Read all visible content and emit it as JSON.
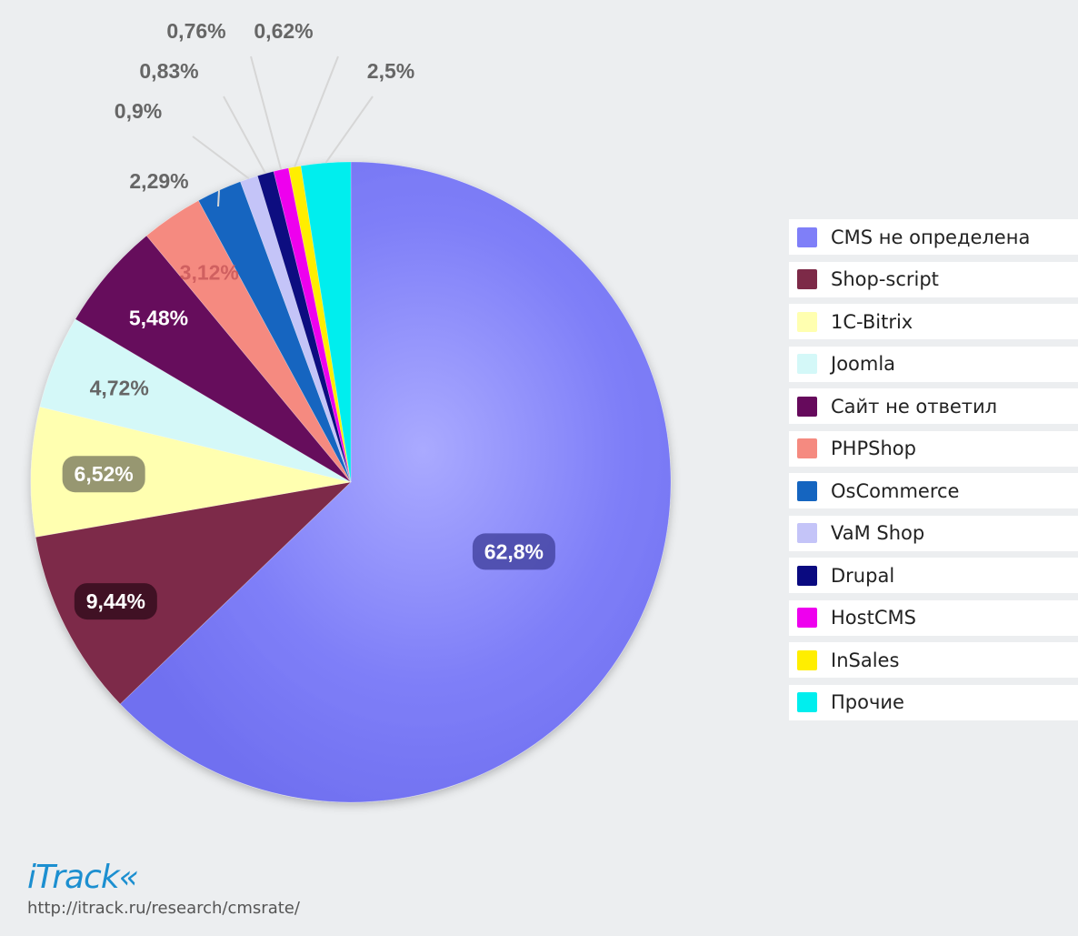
{
  "chart_data": {
    "type": "pie",
    "slices": [
      {
        "name": "CMS не определена",
        "value": 62.8,
        "label": "62,8%",
        "color": "#7f7ff8"
      },
      {
        "name": "Shop-script",
        "value": 9.44,
        "label": "9,44%",
        "color": "#7d2a48"
      },
      {
        "name": "1C-Bitrix",
        "value": 6.52,
        "label": "6,52%",
        "color": "#ffffb0"
      },
      {
        "name": "Joomla",
        "value": 4.72,
        "label": "4,72%",
        "color": "#d4f8f8"
      },
      {
        "name": "Сайт не ответил",
        "value": 5.48,
        "label": "5,48%",
        "color": "#660a5c"
      },
      {
        "name": "PHPShop",
        "value": 3.12,
        "label": "3,12%",
        "color": "#f58a80"
      },
      {
        "name": "OsCommerce",
        "value": 2.29,
        "label": "2,29%",
        "color": "#1565c0"
      },
      {
        "name": "VaM Shop",
        "value": 0.9,
        "label": "0,9%",
        "color": "#c4c4f8"
      },
      {
        "name": "Drupal",
        "value": 0.83,
        "label": "0,83%",
        "color": "#0a0a80"
      },
      {
        "name": "HostCMS",
        "value": 0.76,
        "label": "0,76%",
        "color": "#ee00ee"
      },
      {
        "name": "InSales",
        "value": 0.62,
        "label": "0,62%",
        "color": "#ffee00"
      },
      {
        "name": "Прочие",
        "value": 2.5,
        "label": "2,5%",
        "color": "#00eeee"
      }
    ],
    "start": "12 o'clock",
    "direction": "clockwise",
    "legend_position": "right"
  },
  "branding": {
    "logo": "iTrack«",
    "url": "http://itrack.ru/research/cmsrate/"
  }
}
